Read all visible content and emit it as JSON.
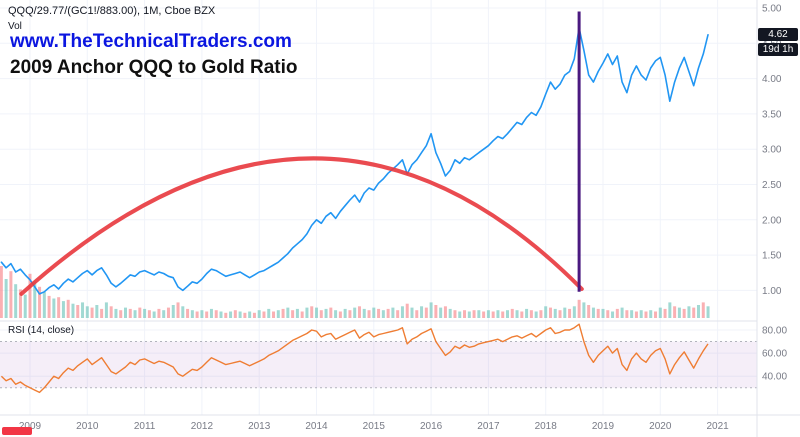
{
  "header": {
    "symbol_legend": "QQQ/29.77/(GC1!/883.00), 1M, Cboe BZX",
    "vol_label": "Vol"
  },
  "watermark": {
    "line1": "www.TheTechnicalTraders.com",
    "line2": "2009 Anchor QQQ to Gold Ratio"
  },
  "rsi_legend": "RSI (14, close)",
  "price_axis": {
    "ticks": [
      "5.00",
      "4.50",
      "4.00",
      "3.50",
      "3.00",
      "2.50",
      "2.00",
      "1.50",
      "1.00"
    ],
    "tick_values": [
      5.0,
      4.5,
      4.0,
      3.5,
      3.0,
      2.5,
      2.0,
      1.5,
      1.0
    ],
    "last_price_label": "4.62",
    "countdown_label": "19d 1h"
  },
  "rsi_axis": {
    "ticks": [
      "80.00",
      "60.00",
      "40.00"
    ],
    "tick_values": [
      80,
      60,
      40
    ]
  },
  "time_axis": {
    "ticks": [
      "2009",
      "2010",
      "2011",
      "2012",
      "2013",
      "2014",
      "2015",
      "2016",
      "2017",
      "2018",
      "2019",
      "2020",
      "2021"
    ],
    "tick_values": [
      2009,
      2010,
      2011,
      2012,
      2013,
      2014,
      2015,
      2016,
      2017,
      2018,
      2019,
      2020,
      2021
    ]
  },
  "colors": {
    "price_line_blue": "#2196f3",
    "arc_red": "#e8373d",
    "vline_purple": "#4a1980",
    "rsi_line_orange": "#ef7d33",
    "volume_up_teal": "rgba(83,186,174,0.55)",
    "volume_down_red": "rgba(247,124,128,0.6)",
    "watermark_blue": "#0b16e0",
    "watermark_black": "#101010",
    "badge_bg_black": "#131722",
    "axis_text_gray": "#787b86",
    "grid": "#f0f3fa",
    "separator": "#e0e3eb",
    "rsi_band_fill": "rgba(156,86,184,0.10)",
    "rsi_band_dash": "#9b9ea7",
    "red_badge": "#f23645"
  },
  "chart_data": [
    {
      "type": "line",
      "name": "QQQ/29.77/(GC1!/883.00) monthly close",
      "title": "2009 Anchor QQQ to Gold Ratio",
      "x_start": 2008.5,
      "x_step": 0.083333,
      "xlim": [
        2008.4,
        2021.2
      ],
      "ylim": [
        0.8,
        5.0
      ],
      "last_value": 4.62,
      "values": [
        1.4,
        1.32,
        1.38,
        1.26,
        1.3,
        1.22,
        1.15,
        1.05,
        0.95,
        0.98,
        1.04,
        1.08,
        1.02,
        1.1,
        1.16,
        1.12,
        1.18,
        1.24,
        1.28,
        1.22,
        1.28,
        1.32,
        1.22,
        1.1,
        1.05,
        1.1,
        1.16,
        1.22,
        1.2,
        1.26,
        1.28,
        1.25,
        1.22,
        1.26,
        1.24,
        1.2,
        1.18,
        1.05,
        1.0,
        1.06,
        1.12,
        1.1,
        1.16,
        1.24,
        1.3,
        1.28,
        1.24,
        1.2,
        1.22,
        1.24,
        1.26,
        1.22,
        1.18,
        1.22,
        1.26,
        1.28,
        1.32,
        1.36,
        1.4,
        1.46,
        1.52,
        1.6,
        1.66,
        1.72,
        1.8,
        1.92,
        2.0,
        1.95,
        2.05,
        2.1,
        2.02,
        2.12,
        2.2,
        2.28,
        2.35,
        2.25,
        2.38,
        2.45,
        2.42,
        2.52,
        2.58,
        2.66,
        2.72,
        2.78,
        2.85,
        2.65,
        2.78,
        2.85,
        2.95,
        3.05,
        3.22,
        2.95,
        2.8,
        2.62,
        2.7,
        2.85,
        2.8,
        2.88,
        2.85,
        2.9,
        2.95,
        3.0,
        3.05,
        3.12,
        3.18,
        3.15,
        3.22,
        3.3,
        3.38,
        3.35,
        3.45,
        3.52,
        3.48,
        3.6,
        3.78,
        3.95,
        3.85,
        3.92,
        4.05,
        4.1,
        4.28,
        4.72,
        4.4,
        4.05,
        3.95,
        4.1,
        4.22,
        4.35,
        4.2,
        4.32,
        3.95,
        3.8,
        4.05,
        4.18,
        4.05,
        3.98,
        4.15,
        4.25,
        4.3,
        4.05,
        3.68,
        3.95,
        4.15,
        4.3,
        4.1,
        3.9,
        4.15,
        4.35,
        4.62
      ],
      "annotations": {
        "red_arc": {
          "x1": 2008.85,
          "y1": 0.95,
          "peak_x": 2013.9,
          "peak_y": 2.87,
          "x2": 2018.63,
          "y2": 1.02
        },
        "vertical_line": {
          "x": 2018.583,
          "y1": 4.95,
          "y2": 0.98
        }
      }
    },
    {
      "type": "bar",
      "name": "Vol",
      "x_start": 2008.5,
      "x_step": 0.083333,
      "note": "magnitude = relative bar height, sign: positive = up (teal), negative = down (red)",
      "values_signed": [
        -40,
        30,
        -36,
        26,
        -22,
        18,
        -34,
        28,
        -24,
        20,
        -17,
        15,
        -16,
        13,
        -14,
        11,
        -10,
        12,
        9,
        -8,
        10,
        -7,
        12,
        -9,
        7,
        -6,
        8,
        -7,
        6,
        -8,
        7,
        -6,
        5,
        -7,
        6,
        -8,
        10,
        -12,
        9,
        -7,
        6,
        -5,
        6,
        -5,
        7,
        -6,
        5,
        -4,
        5,
        -6,
        5,
        -4,
        5,
        -4,
        6,
        -5,
        7,
        -5,
        6,
        -7,
        8,
        -6,
        7,
        -5,
        8,
        -9,
        8,
        -6,
        7,
        -8,
        6,
        -5,
        7,
        -6,
        8,
        -9,
        7,
        -6,
        8,
        -7,
        6,
        -7,
        8,
        -6,
        9,
        -11,
        8,
        -6,
        9,
        -8,
        12,
        -10,
        8,
        -9,
        7,
        -6,
        5,
        -6,
        5,
        -6,
        6,
        -5,
        6,
        -5,
        6,
        -5,
        6,
        -7,
        6,
        -5,
        7,
        -6,
        5,
        -6,
        9,
        -8,
        7,
        -6,
        8,
        -7,
        9,
        -14,
        12,
        -10,
        8,
        -7,
        7,
        -6,
        5,
        -7,
        8,
        -6,
        6,
        -5,
        6,
        -5,
        6,
        -5,
        8,
        -7,
        12,
        -9,
        8,
        -7,
        9,
        -8,
        10,
        -12,
        9
      ]
    },
    {
      "type": "line",
      "name": "RSI (14, close)",
      "x_start": 2008.5,
      "x_step": 0.083333,
      "ylim": [
        20,
        90
      ],
      "band": [
        30,
        70
      ],
      "values": [
        40,
        36,
        38,
        33,
        35,
        32,
        30,
        28,
        26,
        30,
        35,
        40,
        38,
        43,
        47,
        45,
        49,
        52,
        55,
        50,
        53,
        56,
        50,
        44,
        42,
        45,
        48,
        52,
        50,
        54,
        55,
        53,
        51,
        53,
        52,
        50,
        48,
        42,
        40,
        43,
        46,
        45,
        48,
        52,
        56,
        54,
        52,
        50,
        51,
        52,
        53,
        51,
        49,
        51,
        53,
        55,
        58,
        60,
        62,
        65,
        68,
        71,
        73,
        75,
        77,
        80,
        79,
        74,
        76,
        77,
        72,
        74,
        76,
        78,
        80,
        73,
        76,
        78,
        74,
        76,
        77,
        78,
        79,
        80,
        82,
        68,
        72,
        74,
        77,
        79,
        81,
        70,
        64,
        58,
        61,
        66,
        64,
        67,
        65,
        66,
        68,
        69,
        70,
        71,
        72,
        70,
        72,
        74,
        75,
        73,
        75,
        77,
        74,
        77,
        80,
        82,
        77,
        78,
        80,
        80,
        82,
        85,
        70,
        58,
        52,
        58,
        62,
        66,
        60,
        64,
        50,
        45,
        55,
        60,
        55,
        52,
        58,
        62,
        64,
        55,
        42,
        50,
        56,
        61,
        54,
        47,
        55,
        62,
        68
      ]
    }
  ]
}
